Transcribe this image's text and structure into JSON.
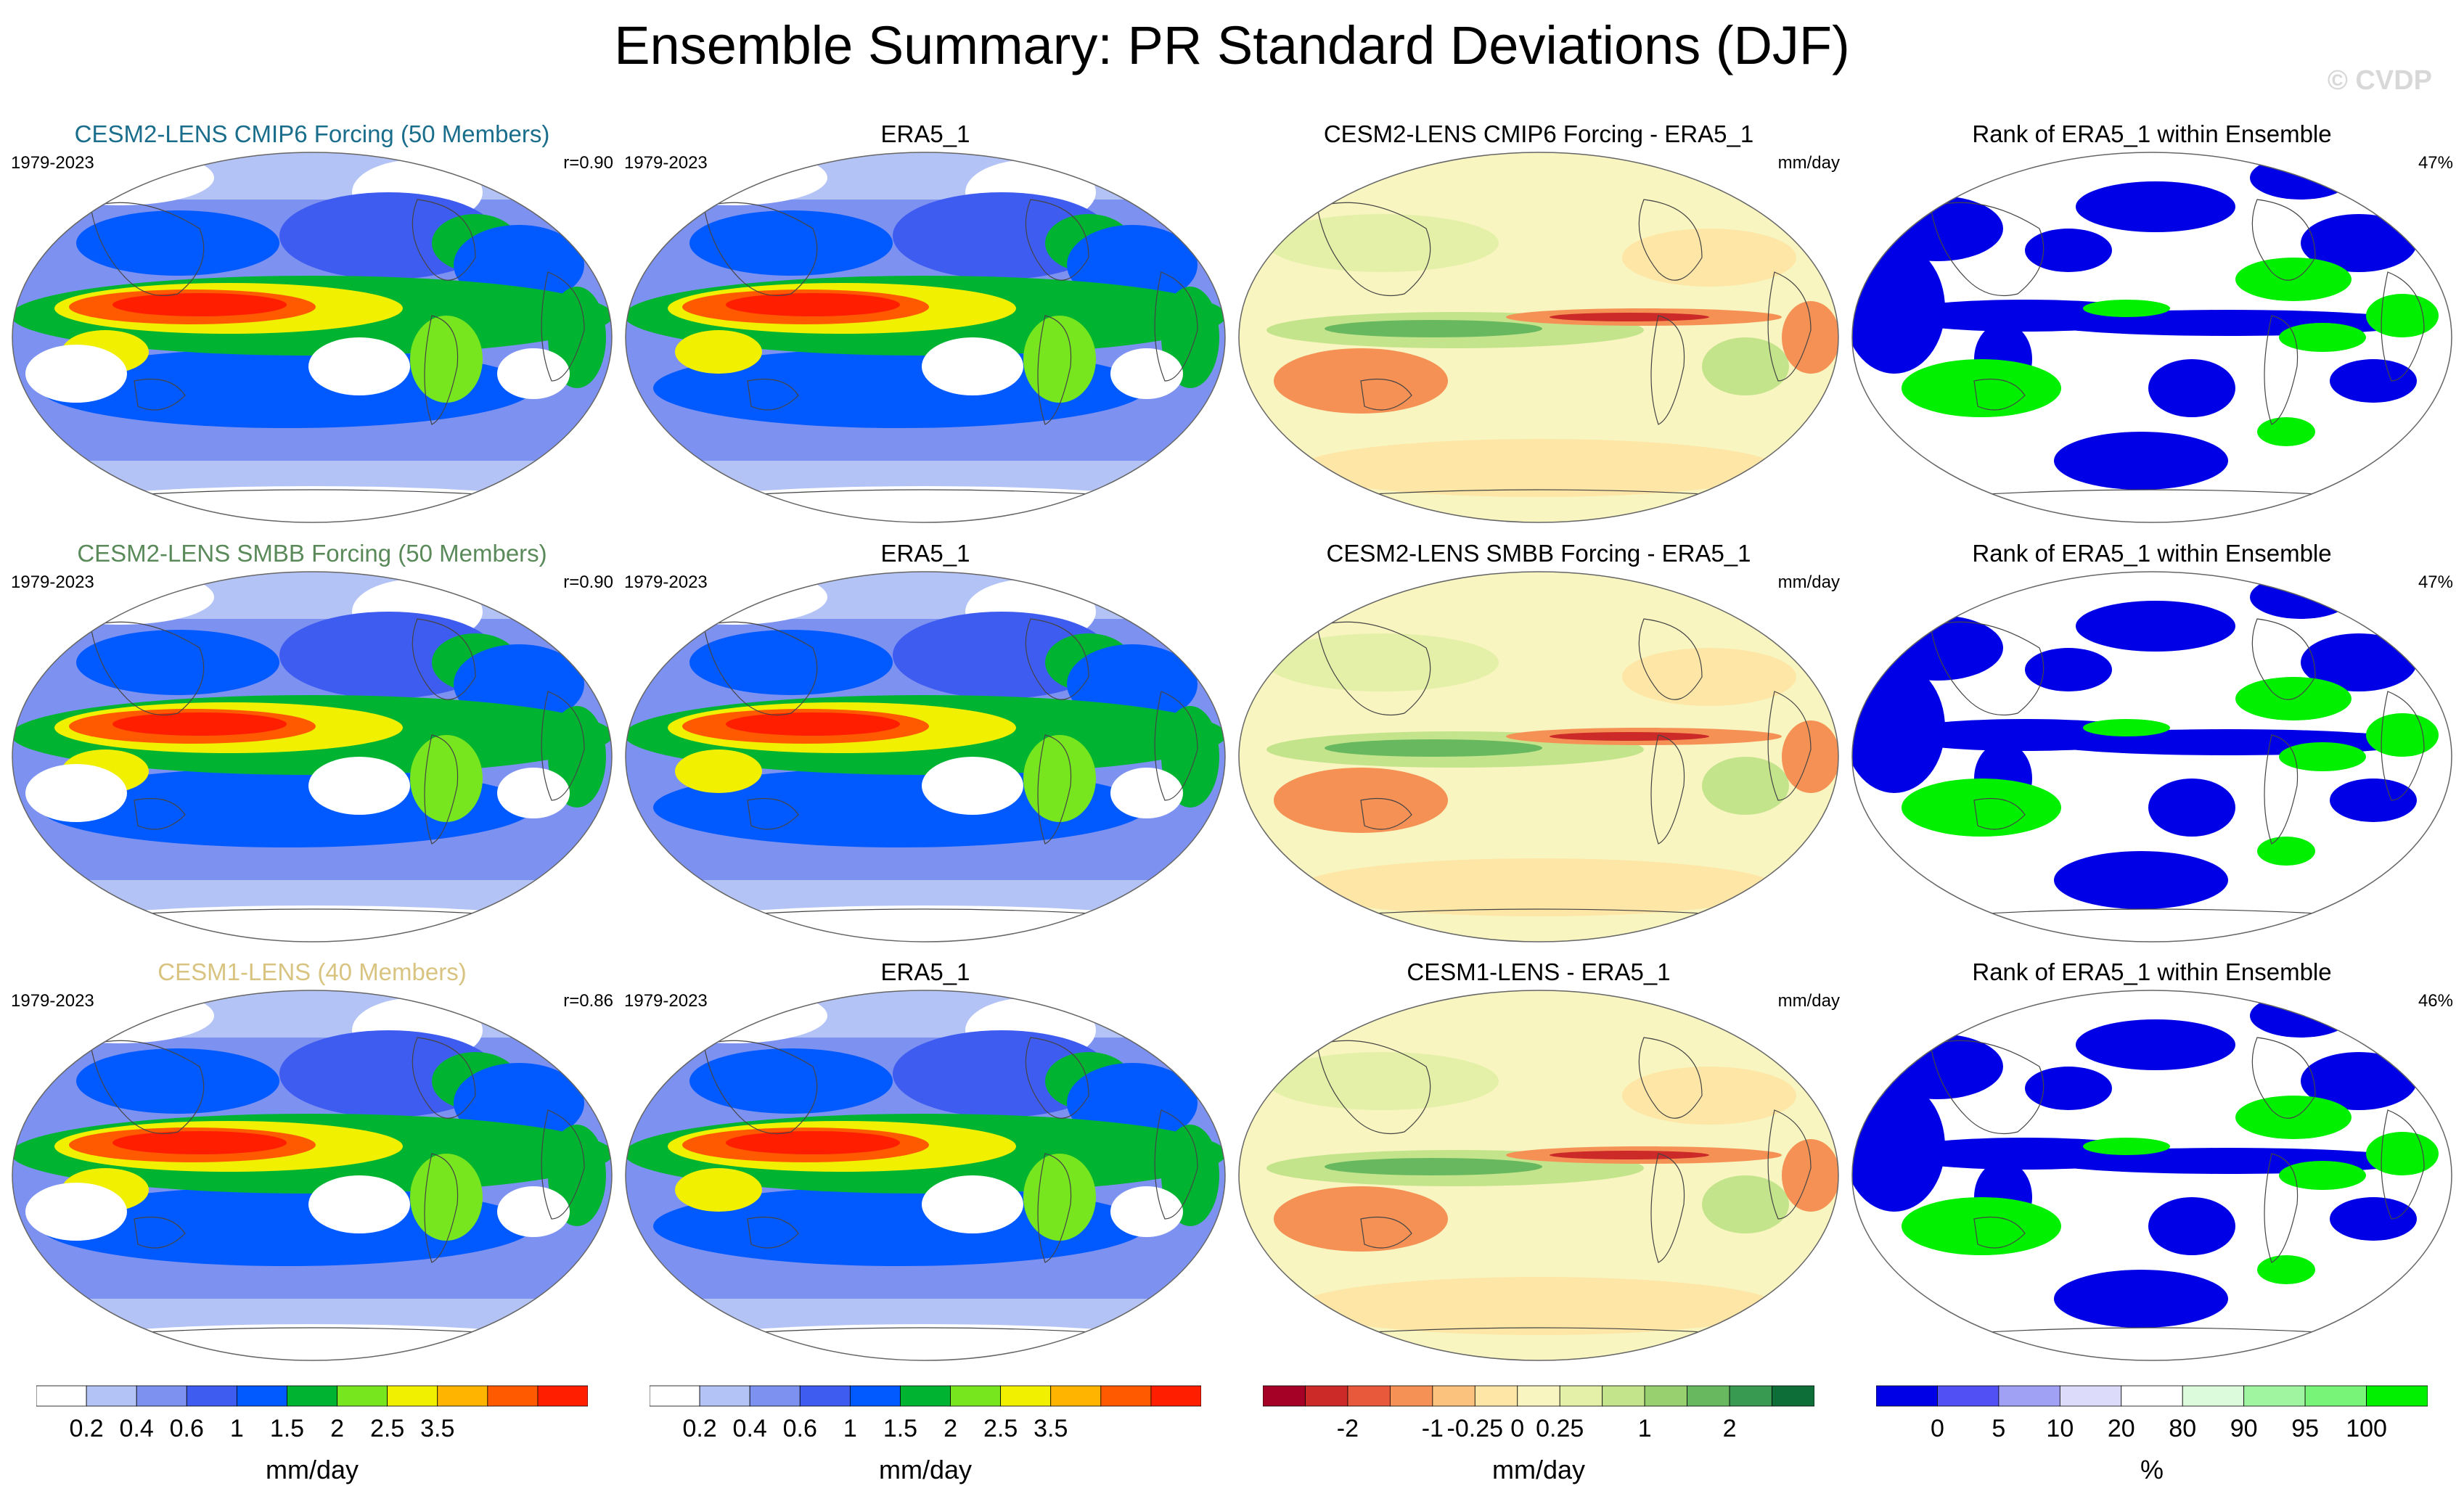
{
  "title": "Ensemble Summary: PR Standard Deviations (DJF)",
  "watermark": "© CVDP",
  "colors": {
    "ens1": "#1a6e8c",
    "ens2": "#5a8a5a",
    "ens3": "#d8c480",
    "std_scale": [
      "#ffffff",
      "#b4c3f5",
      "#7d91f0",
      "#3f5cf0",
      "#005aff",
      "#00b432",
      "#78e61e",
      "#f0f000",
      "#ffb400",
      "#ff5a00",
      "#ff1e00"
    ],
    "diff_scale": [
      "#a50026",
      "#cc2a28",
      "#e8583a",
      "#f59155",
      "#fac27c",
      "#fde6a6",
      "#f8f5c0",
      "#e4f0a8",
      "#c4e48c",
      "#98d070",
      "#68b860",
      "#389a50",
      "#0e6e38"
    ],
    "rank_scale": [
      "#0000e6",
      "#5050f5",
      "#a0a0f5",
      "#dcdcfa",
      "#ffffff",
      "#dcfadc",
      "#a0f5a0",
      "#78f578",
      "#00f000"
    ]
  },
  "rows": [
    {
      "ensemble": {
        "title": "CESM2-LENS CMIP6 Forcing (50 Members)",
        "years": "1979-2023",
        "corr": "r=0.90"
      },
      "obs": {
        "title": "ERA5_1",
        "years": "1979-2023"
      },
      "diff": {
        "title": "CESM2-LENS CMIP6 Forcing - ERA5_1",
        "units": "mm/day"
      },
      "rank": {
        "title": "Rank of ERA5_1 within Ensemble",
        "percent": "47%"
      }
    },
    {
      "ensemble": {
        "title": "CESM2-LENS SMBB Forcing (50 Members)",
        "years": "1979-2023",
        "corr": "r=0.90"
      },
      "obs": {
        "title": "ERA5_1",
        "years": "1979-2023"
      },
      "diff": {
        "title": "CESM2-LENS SMBB Forcing - ERA5_1",
        "units": "mm/day"
      },
      "rank": {
        "title": "Rank of ERA5_1 within Ensemble",
        "percent": "47%"
      }
    },
    {
      "ensemble": {
        "title": "CESM1-LENS (40 Members)",
        "years": "1979-2023",
        "corr": "r=0.86"
      },
      "obs": {
        "title": "ERA5_1",
        "years": "1979-2023"
      },
      "diff": {
        "title": "CESM1-LENS - ERA5_1",
        "units": "mm/day"
      },
      "rank": {
        "title": "Rank of ERA5_1 within Ensemble",
        "percent": "46%"
      }
    }
  ],
  "chart_data": {
    "type": "heatmap",
    "title": "Ensemble Summary: PR Standard Deviations (DJF)",
    "projection": "global map (ellipse)",
    "colorbars": [
      {
        "levels": [
          "0.2",
          "0.4",
          "0.6",
          "1",
          "1.5",
          "2",
          "2.5",
          "3.5"
        ],
        "units": "mm/day"
      },
      {
        "levels": [
          "0.2",
          "0.4",
          "0.6",
          "1",
          "1.5",
          "2",
          "2.5",
          "3.5"
        ],
        "units": "mm/day"
      },
      {
        "levels": [
          "-2",
          "-1",
          "-0.25",
          "0",
          "0.25",
          "1",
          "2"
        ],
        "units": "mm/day"
      },
      {
        "levels": [
          "0",
          "5",
          "10",
          "20",
          "80",
          "90",
          "95",
          "100"
        ],
        "units": "%"
      }
    ]
  }
}
